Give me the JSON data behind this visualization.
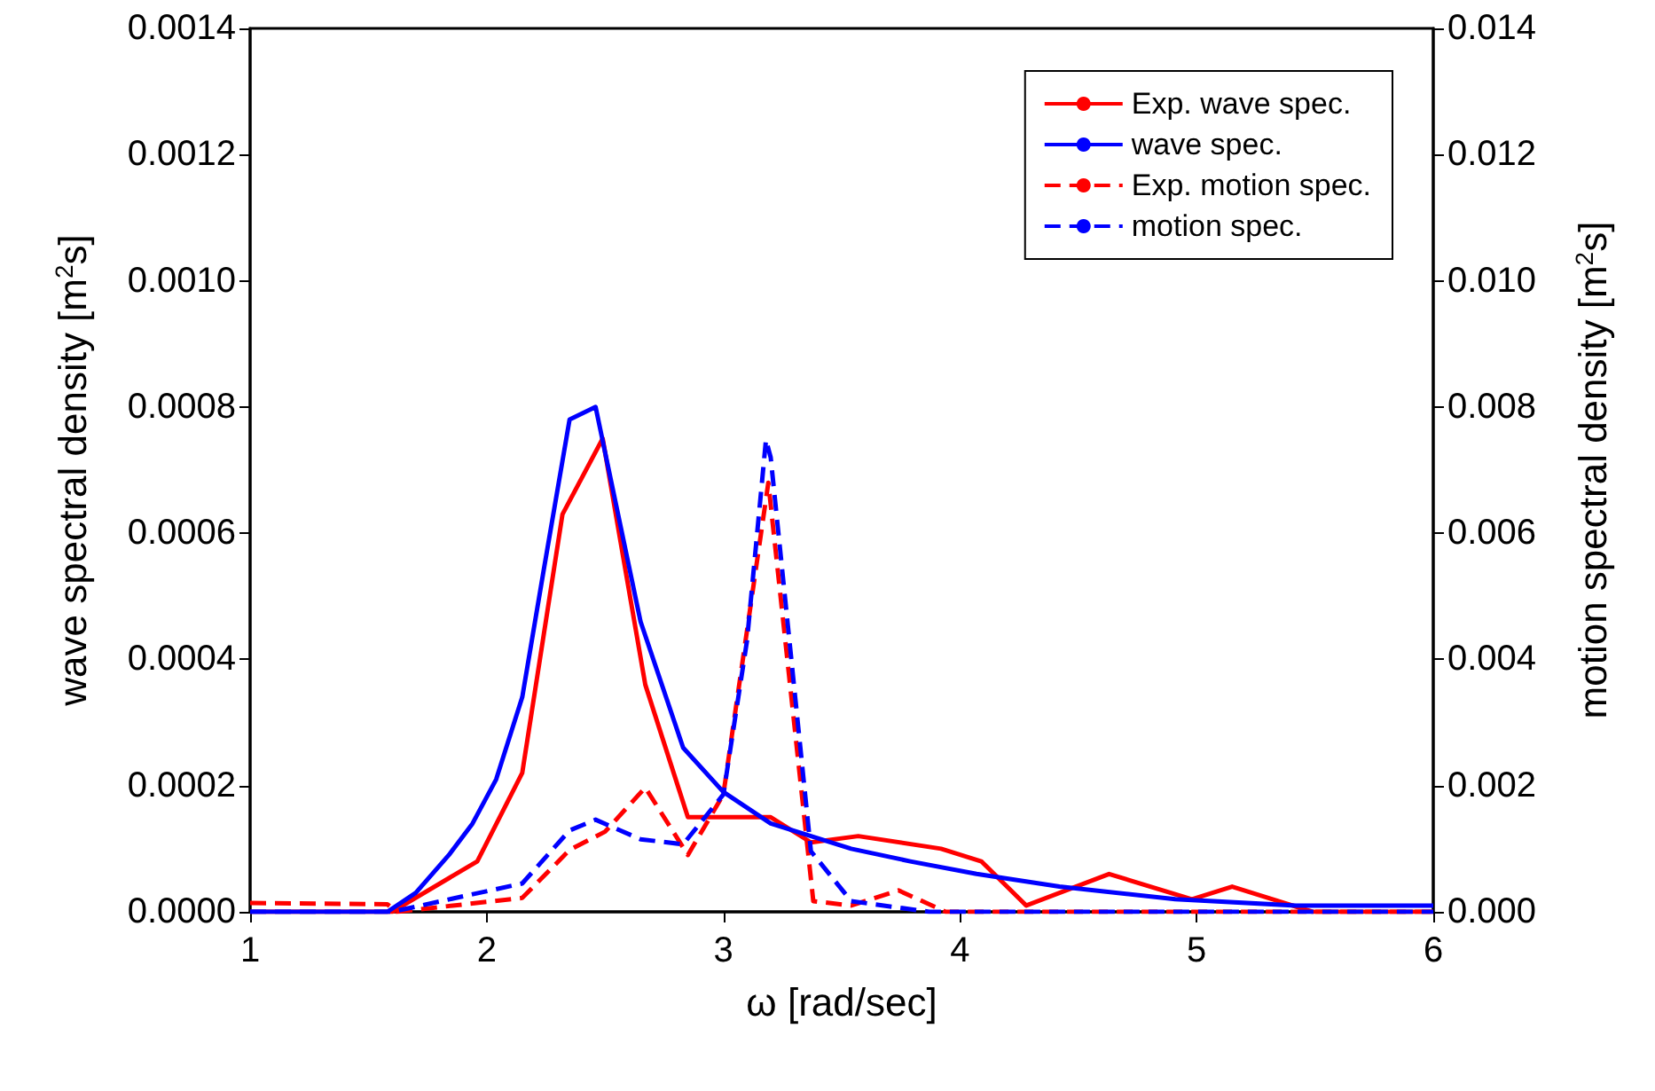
{
  "chart_data": {
    "type": "line",
    "xlabel": "ω [rad/sec]",
    "ylabel": "wave spectral density [m$^{2}$s]",
    "y2label": "motion spectral density [m$^{2}$s]",
    "xlim": [
      1,
      6
    ],
    "xticks": [
      1,
      2,
      3,
      4,
      5,
      6
    ],
    "ylim": [
      0,
      0.0014
    ],
    "yticks": [
      {
        "value": 0,
        "label": "0.0000"
      },
      {
        "value": 0.0002,
        "label": "0.0002"
      },
      {
        "value": 0.0004,
        "label": "0.0004"
      },
      {
        "value": 0.0006,
        "label": "0.0006"
      },
      {
        "value": 0.0008,
        "label": "0.0008"
      },
      {
        "value": 0.001,
        "label": "0.0010"
      },
      {
        "value": 0.0012,
        "label": "0.0012"
      },
      {
        "value": 0.0014,
        "label": "0.0014"
      }
    ],
    "y2lim": [
      0,
      0.014
    ],
    "y2ticks": [
      {
        "value": 0,
        "label": "0.000"
      },
      {
        "value": 0.002,
        "label": "0.002"
      },
      {
        "value": 0.004,
        "label": "0.004"
      },
      {
        "value": 0.006,
        "label": "0.006"
      },
      {
        "value": 0.008,
        "label": "0.008"
      },
      {
        "value": 0.01,
        "label": "0.010"
      },
      {
        "value": 0.012,
        "label": "0.012"
      },
      {
        "value": 0.014,
        "label": "0.014"
      }
    ],
    "grid": false,
    "legend": "top right",
    "marker": "none",
    "series": [
      {
        "name": "Exp. wave spec.",
        "color": "#ff0000",
        "line_style": "solid",
        "x": [
          1,
          1.6,
          1.96,
          2.15,
          2.32,
          2.49,
          2.67,
          2.85,
          3.2,
          3.37,
          3.57,
          3.92,
          4.09,
          4.28,
          4.63,
          4.98,
          5.15,
          5.49,
          6
        ],
        "values": [
          0,
          0,
          8e-05,
          0.00022,
          0.00063,
          0.00075,
          0.00036,
          0.00015,
          0.00015,
          0.00011,
          0.00012,
          0.0001,
          8e-05,
          1e-05,
          6e-05,
          2e-05,
          4e-05,
          0,
          0
        ]
      },
      {
        "name": "wave spec.",
        "color": "#0000ff",
        "line_style": "solid",
        "x": [
          1,
          1.58,
          1.7,
          1.84,
          1.94,
          2.04,
          2.15,
          2.24,
          2.35,
          2.46,
          2.65,
          2.83,
          3.0,
          3.2,
          3.37,
          3.54,
          3.79,
          4.07,
          4.42,
          4.91,
          5.42,
          6
        ],
        "values": [
          0,
          0,
          3e-05,
          9e-05,
          0.00014,
          0.00021,
          0.00034,
          0.00054,
          0.00078,
          0.0008,
          0.00046,
          0.00026,
          0.00019,
          0.00014,
          0.00012,
          0.0001,
          8e-05,
          6e-05,
          4e-05,
          2e-05,
          1e-05,
          1e-05
        ]
      },
      {
        "name": "Exp. motion spec.",
        "color": "#ff0000",
        "line_style": "dashed",
        "axis": "y2",
        "x": [
          1,
          1.58,
          1.62,
          2.15,
          2.35,
          2.5,
          2.67,
          2.85,
          3.0,
          3.19,
          3.38,
          3.54,
          3.74,
          3.94,
          6
        ],
        "values": [
          0.00014,
          0.00012,
          0,
          0.00022,
          0.00098,
          0.00127,
          0.00197,
          0.0009,
          0.00186,
          0.0068,
          0.00017,
          0.0001,
          0.00034,
          0,
          0
        ]
      },
      {
        "name": "motion spec.",
        "color": "#0000ff",
        "line_style": "dashed",
        "axis": "y2",
        "x": [
          1,
          1.6,
          2.15,
          2.35,
          2.46,
          2.65,
          2.83,
          3.0,
          3.1,
          3.18,
          3.2,
          3.37,
          3.54,
          3.87,
          6
        ],
        "values": [
          0,
          0,
          0.00045,
          0.00129,
          0.00146,
          0.00115,
          0.00107,
          0.00186,
          0.0043,
          0.00748,
          0.0072,
          0.00096,
          0.00017,
          0,
          0
        ]
      }
    ]
  }
}
